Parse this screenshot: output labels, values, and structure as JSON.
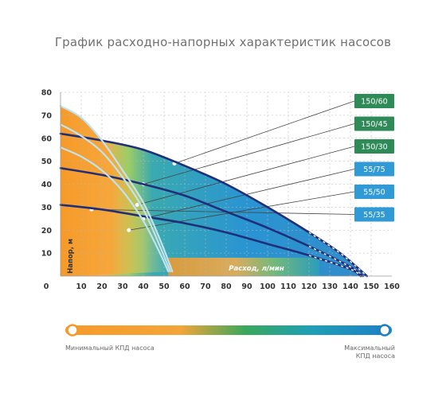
{
  "chart_data": {
    "type": "line",
    "title": "График расходно-напорных характеристик насосов",
    "xlabel": "Расход, л/мин",
    "ylabel": "Напор, м",
    "origin_label": "0",
    "xlim": [
      0,
      160
    ],
    "ylim": [
      0,
      80
    ],
    "x_ticks": [
      10,
      20,
      30,
      40,
      50,
      60,
      70,
      80,
      90,
      100,
      110,
      120,
      130,
      140,
      150,
      160
    ],
    "y_ticks": [
      10,
      20,
      30,
      40,
      50,
      60,
      70,
      80
    ],
    "grid": true,
    "series": [
      {
        "name": "150/60",
        "points": [
          [
            0,
            62
          ],
          [
            20,
            59
          ],
          [
            40,
            55
          ],
          [
            60,
            48
          ],
          [
            80,
            40
          ],
          [
            100,
            30
          ],
          [
            120,
            19
          ],
          [
            135,
            10
          ],
          [
            148,
            0
          ]
        ]
      },
      {
        "name": "150/45",
        "points": [
          [
            0,
            47
          ],
          [
            20,
            44
          ],
          [
            40,
            40
          ],
          [
            60,
            35
          ],
          [
            80,
            28
          ],
          [
            100,
            21
          ],
          [
            120,
            13
          ],
          [
            140,
            4
          ],
          [
            146,
            0
          ]
        ]
      },
      {
        "name": "150/30",
        "points": [
          [
            0,
            31
          ],
          [
            20,
            29
          ],
          [
            40,
            26
          ],
          [
            60,
            23
          ],
          [
            80,
            19
          ],
          [
            100,
            14
          ],
          [
            120,
            9
          ],
          [
            140,
            3
          ],
          [
            145,
            0
          ]
        ]
      },
      {
        "name": "55/75",
        "points": [
          [
            0,
            74
          ],
          [
            10,
            69
          ],
          [
            20,
            59
          ],
          [
            30,
            46
          ],
          [
            40,
            32
          ],
          [
            48,
            16
          ],
          [
            54,
            2
          ]
        ]
      },
      {
        "name": "55/50",
        "points": [
          [
            0,
            66
          ],
          [
            10,
            61
          ],
          [
            20,
            54
          ],
          [
            30,
            43
          ],
          [
            40,
            29
          ],
          [
            48,
            13
          ],
          [
            53,
            2
          ]
        ]
      },
      {
        "name": "55/35",
        "points": [
          [
            0,
            56
          ],
          [
            10,
            52
          ],
          [
            20,
            46
          ],
          [
            30,
            37
          ],
          [
            40,
            24
          ],
          [
            48,
            10
          ],
          [
            52,
            2
          ]
        ]
      }
    ],
    "legend_placement": "right",
    "colors": {
      "series_150": "#1f2f7a",
      "series_55": "#bfe3f0",
      "legend_150": "#2e8b57",
      "legend_55": "#2f9ad6",
      "efficiency_low": "#f59a2a",
      "efficiency_high": "#2a86c8",
      "efficiency_mid": "#3aa85a"
    },
    "scale": {
      "min_label": "Минимальный КПД насоса",
      "max_label": "Максимальный КПД насоса"
    }
  }
}
